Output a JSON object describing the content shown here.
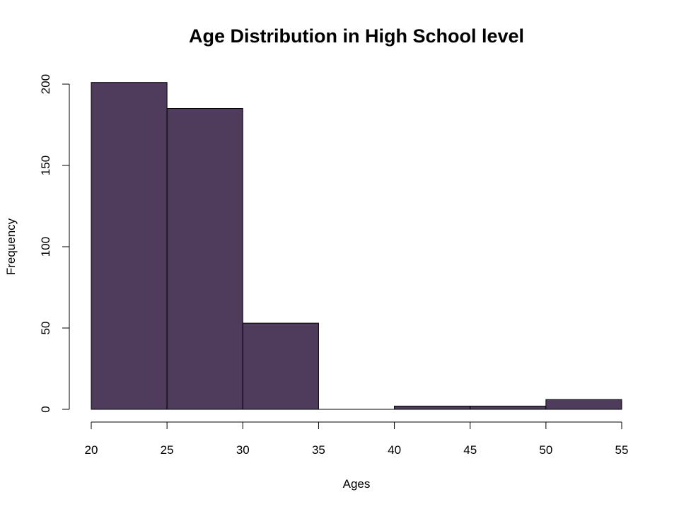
{
  "chart_data": {
    "type": "bar",
    "title": "Age Distribution in High School level",
    "xlabel": "Ages",
    "ylabel": "Frequency",
    "bins": [
      {
        "start": 20,
        "end": 25,
        "value": 201
      },
      {
        "start": 25,
        "end": 30,
        "value": 185
      },
      {
        "start": 30,
        "end": 35,
        "value": 53
      },
      {
        "start": 35,
        "end": 40,
        "value": 0
      },
      {
        "start": 40,
        "end": 45,
        "value": 2
      },
      {
        "start": 45,
        "end": 50,
        "value": 2
      },
      {
        "start": 50,
        "end": 55,
        "value": 6
      }
    ],
    "xlim": [
      20,
      55
    ],
    "ylim": [
      0,
      201
    ],
    "x_ticks": [
      20,
      25,
      30,
      35,
      40,
      45,
      50,
      55
    ],
    "y_ticks": [
      0,
      50,
      100,
      150,
      200
    ],
    "bar_color": "#4f3b5c",
    "grid": false
  }
}
